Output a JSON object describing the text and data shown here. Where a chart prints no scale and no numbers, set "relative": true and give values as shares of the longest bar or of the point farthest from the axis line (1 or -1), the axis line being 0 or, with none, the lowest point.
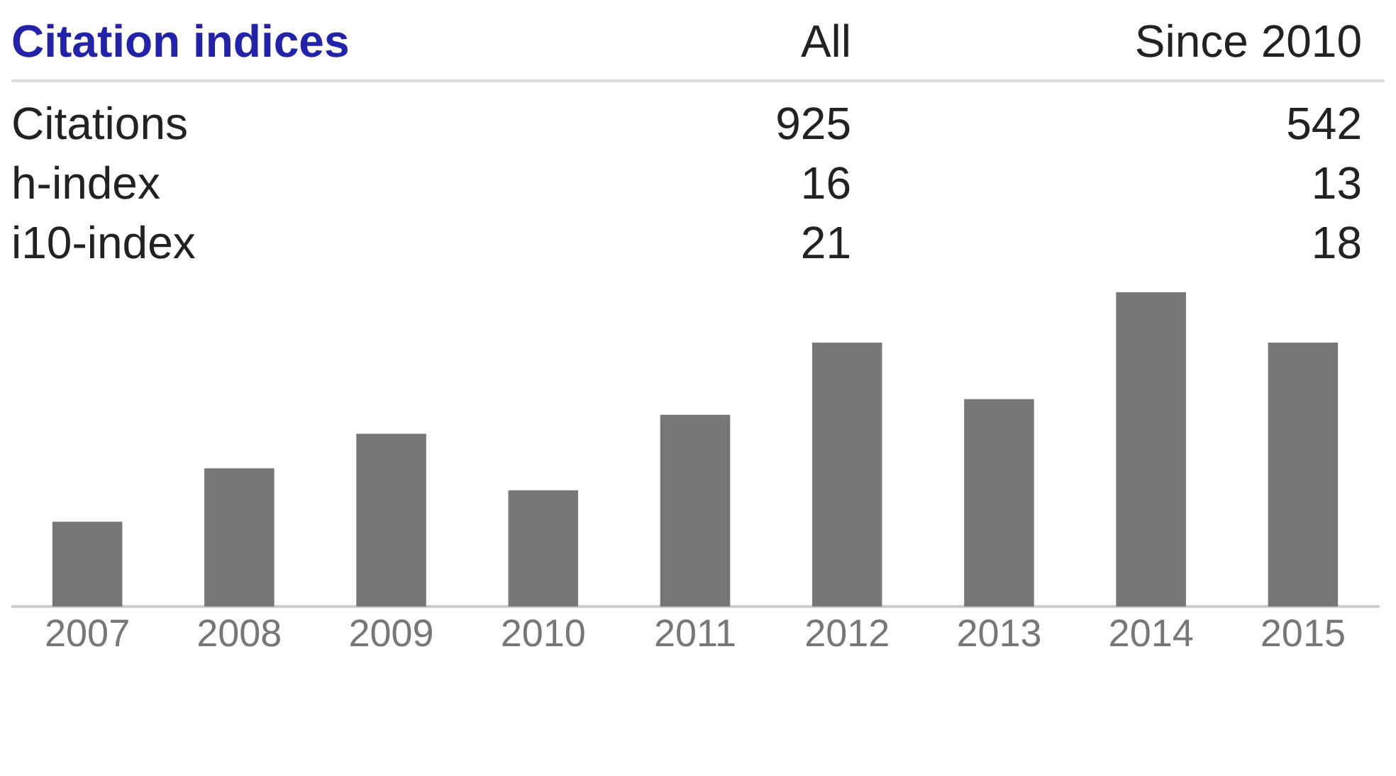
{
  "chart_data": [
    {
      "type": "other",
      "title": "Citation indices",
      "annotations": [
        "All",
        "Since 2010",
        "Citations",
        "925",
        "542",
        "h-index",
        "16",
        "13",
        "i10-index",
        "21",
        "18"
      ]
    },
    {
      "type": "bar",
      "relative": true,
      "categories": [
        "2007",
        "2008",
        "2009",
        "2010",
        "2011",
        "2012",
        "2013",
        "2014",
        "2015"
      ],
      "values": [
        0.27,
        0.44,
        0.55,
        0.37,
        0.61,
        0.84,
        0.66,
        1,
        0.84
      ],
      "color": "#777777"
    }
  ]
}
